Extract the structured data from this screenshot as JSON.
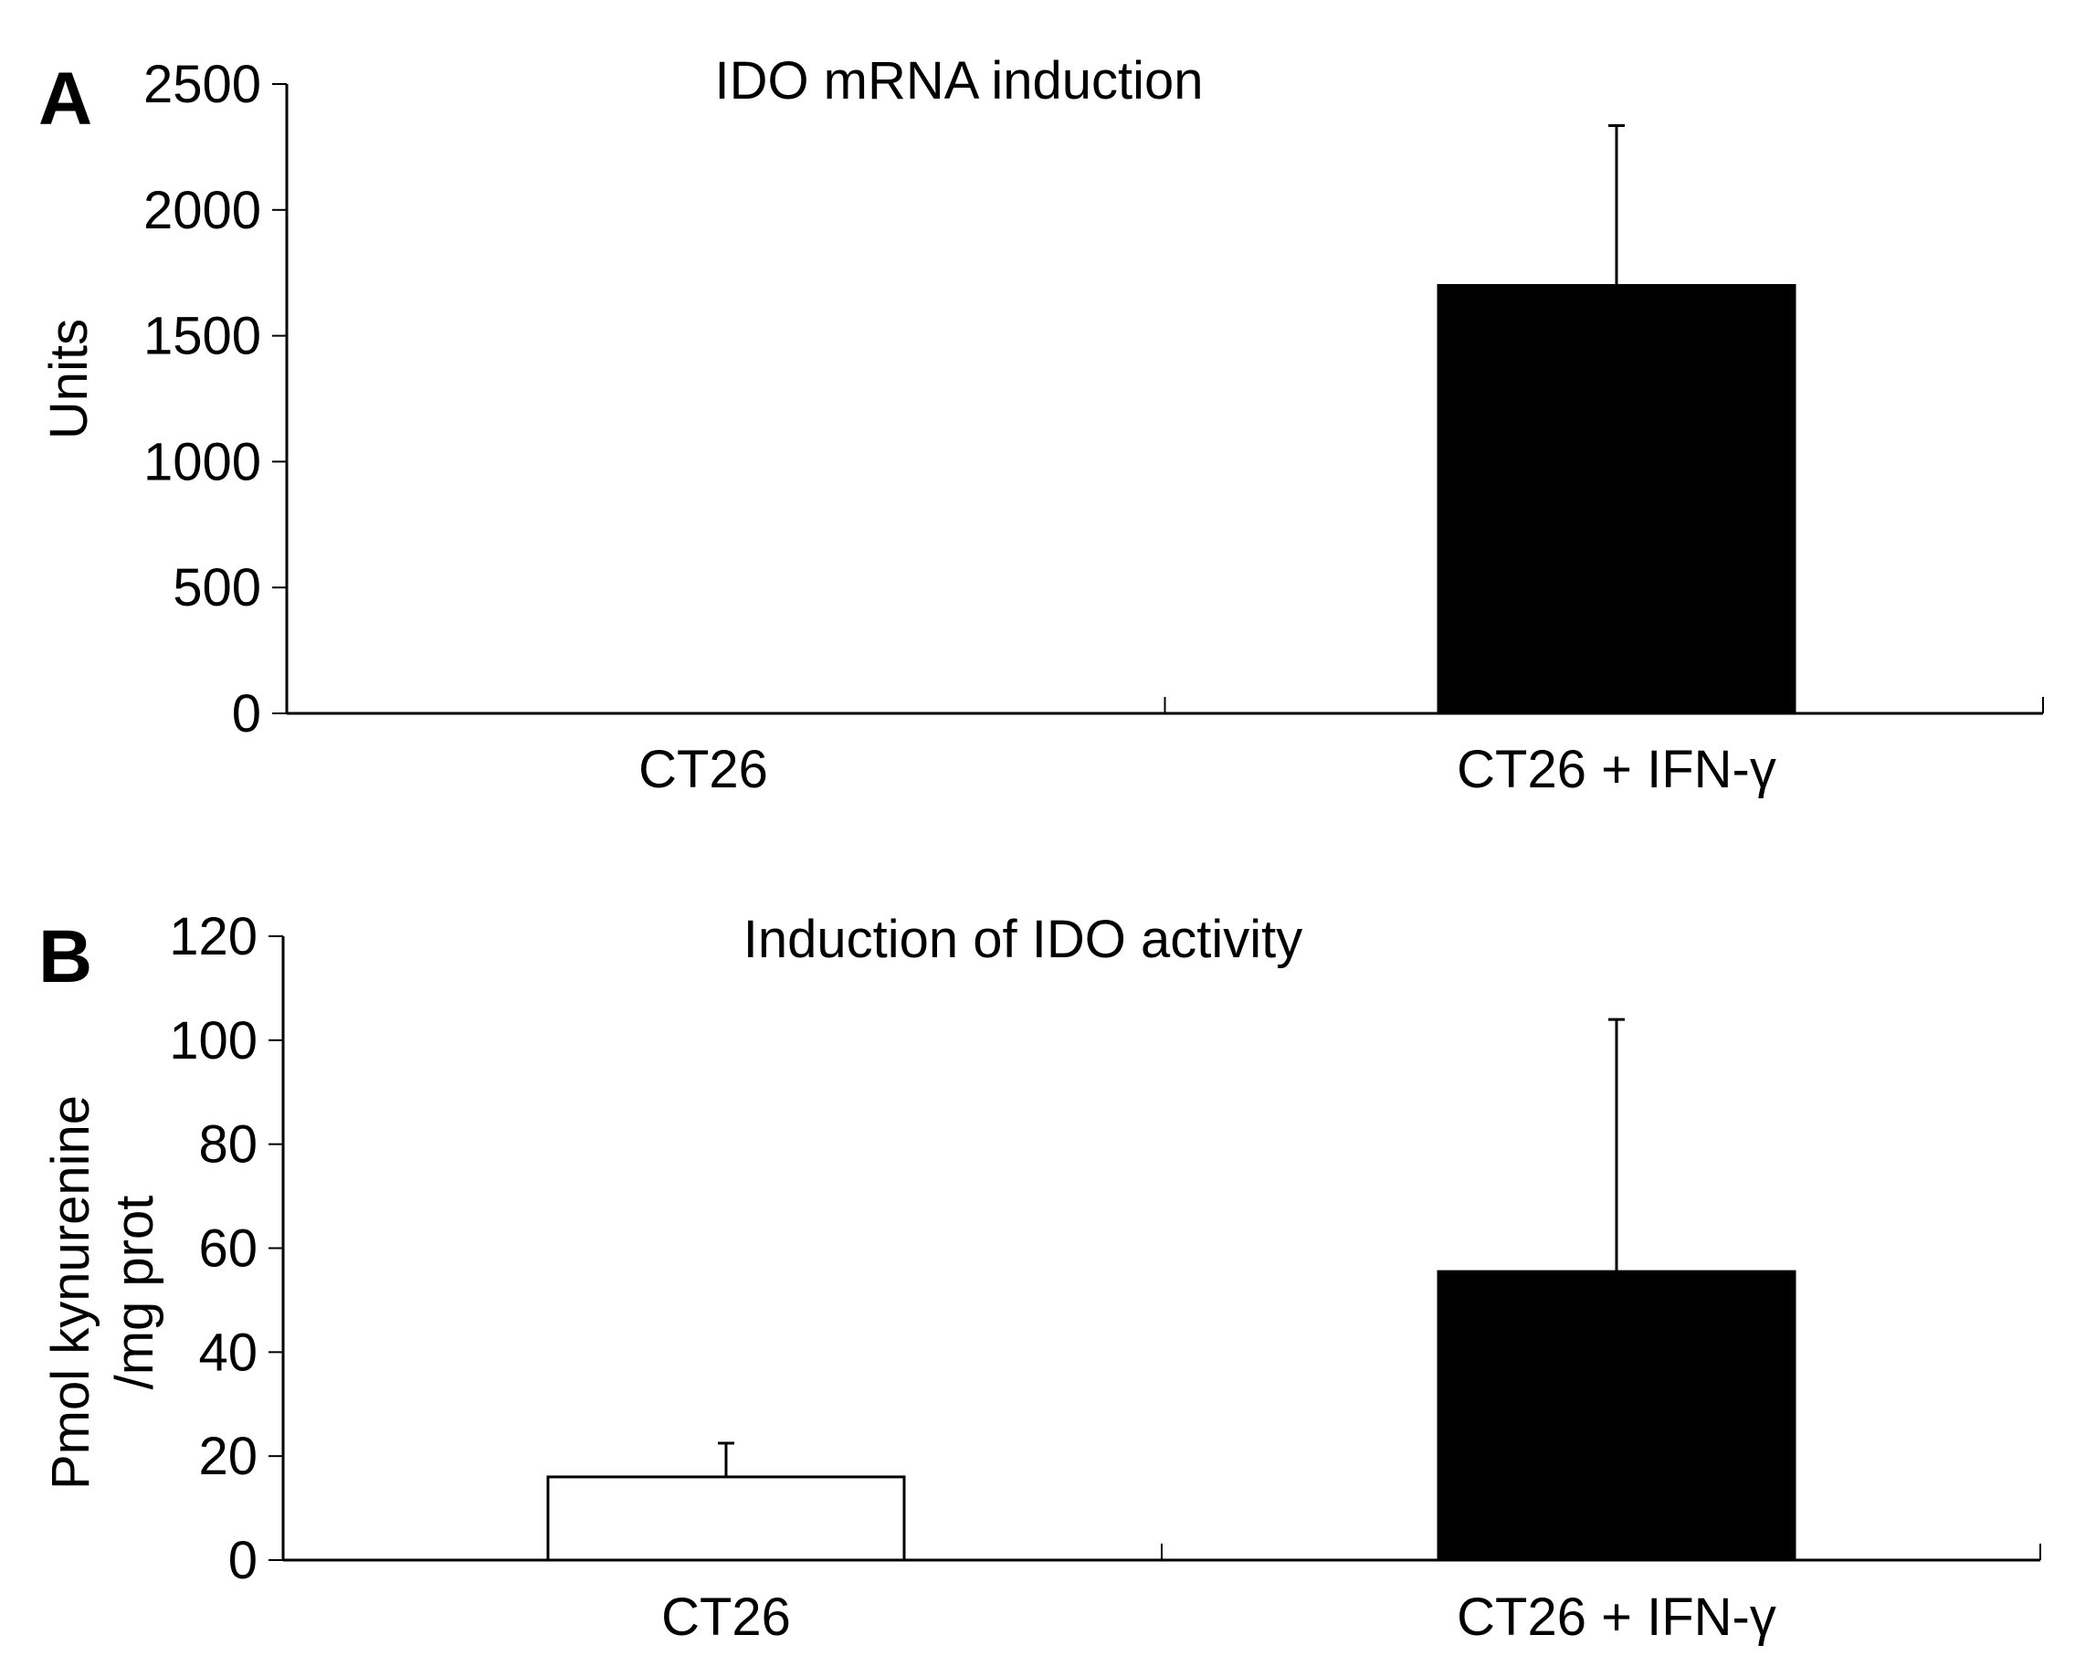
{
  "chart_data": [
    {
      "panel_label": "A",
      "type": "bar",
      "title": "IDO mRNA induction",
      "xlabel": "",
      "ylabel": "Units",
      "ylim": [
        0,
        2500
      ],
      "yticks": [
        0,
        500,
        1000,
        1500,
        2000,
        2500
      ],
      "categories": [
        "CT26",
        "CT26 + IFN-γ"
      ],
      "values": [
        0,
        1700
      ],
      "error_upper": [
        0,
        2335
      ],
      "bar_colors": [
        "#ffffff",
        "#000000"
      ],
      "grid": false,
      "legend": "none"
    },
    {
      "panel_label": "B",
      "type": "bar",
      "title": "Induction of IDO activity",
      "xlabel": "",
      "ylabel_lines": [
        "Pmol kynurenine",
        "/mg prot"
      ],
      "ylim": [
        0,
        120
      ],
      "yticks": [
        0,
        20,
        40,
        60,
        80,
        100,
        120
      ],
      "categories": [
        "CT26",
        "CT26 + IFN-γ"
      ],
      "values": [
        16,
        55.5
      ],
      "error_upper": [
        22.5,
        104
      ],
      "bar_colors": [
        "#ffffff",
        "#000000"
      ],
      "grid": false,
      "legend": "none"
    }
  ]
}
